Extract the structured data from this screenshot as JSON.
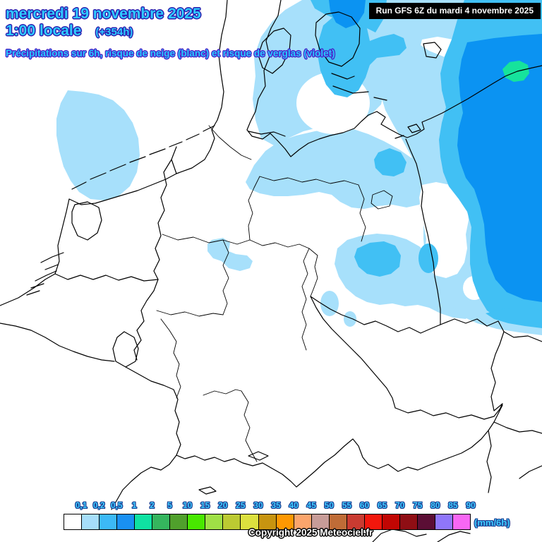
{
  "header": {
    "date_line": "mercredi 19 novembre 2025",
    "time_line": "1:00 locale",
    "offset_label": "(+354h)",
    "subtitle": "Précipitations sur 6h, risque de neige (blanc) et risque de verglas (violet)",
    "run_label": "Run GFS 6Z du mardi 4 novembre 2025"
  },
  "legend": {
    "unit_label": "(mm/6h)",
    "values": [
      "0,1",
      "0,2",
      "0,5",
      "1",
      "2",
      "5",
      "10",
      "15",
      "20",
      "25",
      "30",
      "35",
      "40",
      "45",
      "50",
      "55",
      "60",
      "65",
      "70",
      "75",
      "80",
      "85",
      "90"
    ],
    "colors": [
      "#ffffff",
      "#a6defa",
      "#3cb9f6",
      "#1990f2",
      "#0fe2a2",
      "#35b55e",
      "#50a02c",
      "#48e800",
      "#9fe046",
      "#bcca32",
      "#dce03e",
      "#c79410",
      "#fe9802",
      "#fba56c",
      "#c79c98",
      "#bf6c37",
      "#c93b31",
      "#f2170c",
      "#c10603",
      "#8f0e14",
      "#5b0e35",
      "#8f76fa",
      "#f767f4"
    ]
  },
  "map": {
    "colors": {
      "light": "#a7e0fb",
      "medium": "#41c0f4",
      "heavy": "#0b93f2",
      "intense": "#16e39c"
    }
  },
  "footer": {
    "copyright": "Copyright 2025 Meteociel.fr"
  }
}
